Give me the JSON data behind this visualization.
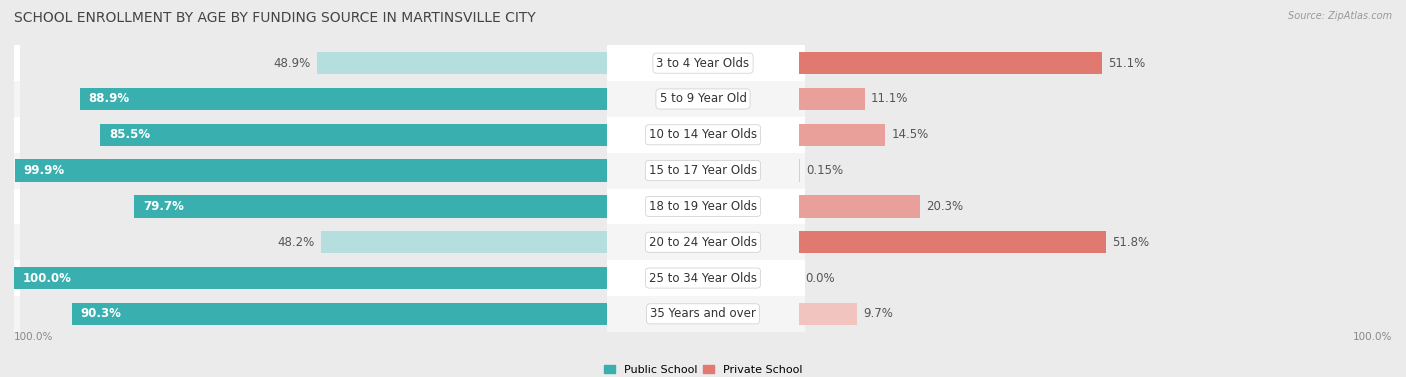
{
  "title": "SCHOOL ENROLLMENT BY AGE BY FUNDING SOURCE IN MARTINSVILLE CITY",
  "source": "Source: ZipAtlas.com",
  "categories": [
    "3 to 4 Year Olds",
    "5 to 9 Year Old",
    "10 to 14 Year Olds",
    "15 to 17 Year Olds",
    "18 to 19 Year Olds",
    "20 to 24 Year Olds",
    "25 to 34 Year Olds",
    "35 Years and over"
  ],
  "public_pct": [
    48.9,
    88.9,
    85.5,
    99.9,
    79.7,
    48.2,
    100.0,
    90.3
  ],
  "private_pct": [
    51.1,
    11.1,
    14.5,
    0.15,
    20.3,
    51.8,
    0.0,
    9.7
  ],
  "public_color_dark": "#3AAFAF",
  "public_color_light": "#82CECE",
  "public_color_vlight": "#B5DEDE",
  "private_color_dark": "#E07A70",
  "private_color_med": "#EAA09A",
  "private_color_light": "#F2C4C0",
  "bg_color": "#EBEBEB",
  "row_bg": "#FFFFFF",
  "row_bg_alt": "#F5F5F5",
  "title_fontsize": 10,
  "label_fontsize": 8.5,
  "cat_fontsize": 8.5,
  "legend_fontsize": 8,
  "axis_label_fontsize": 7.5
}
